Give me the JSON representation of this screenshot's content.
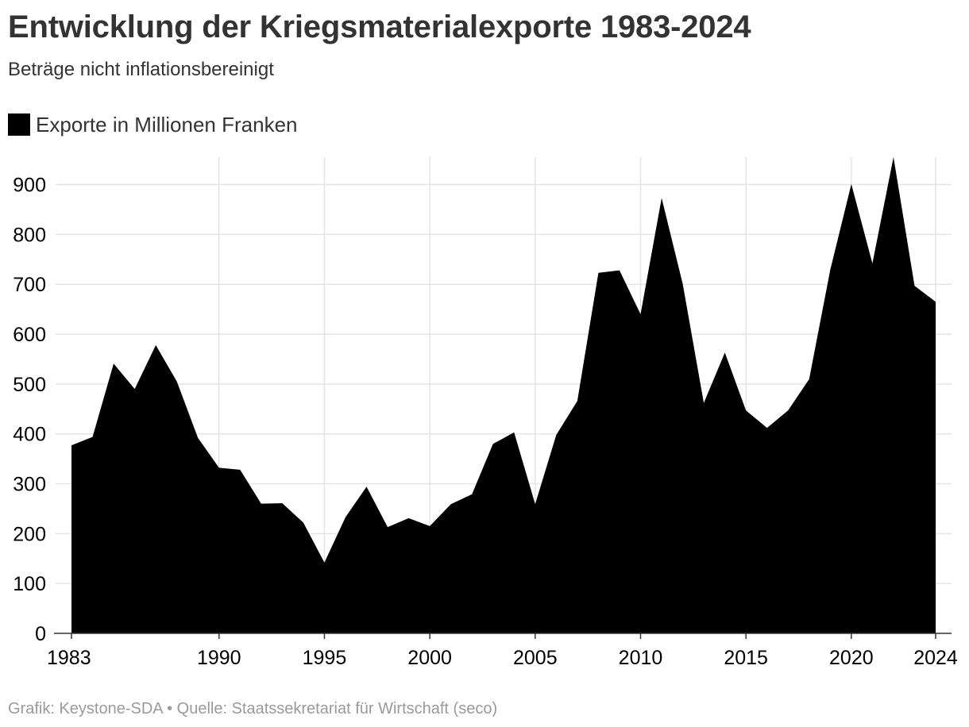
{
  "header": {
    "title": "Entwicklung der Kriegsmaterialexporte 1983-2024",
    "subtitle": "Beträge nicht inflationsbereinigt"
  },
  "legend": {
    "label": "Exporte in Millionen Franken",
    "color": "#000000"
  },
  "footer": {
    "credit": "Grafik: Keystone-SDA • Quelle: Staatssekretariat für Wirtschaft (seco)"
  },
  "colors": {
    "series": "#000000",
    "grid": "#e4e4e4",
    "axis": "#333333",
    "text": "#333333",
    "footer": "#9a9a9a"
  },
  "chart_data": {
    "type": "area",
    "title": "Entwicklung der Kriegsmaterialexporte 1983-2024",
    "subtitle": "Beträge nicht inflationsbereinigt",
    "xlabel": "",
    "ylabel": "",
    "xlim": [
      1983,
      2024
    ],
    "ylim": [
      0,
      955
    ],
    "grid": true,
    "legend_position": "top-left",
    "y_ticks": [
      0,
      100,
      200,
      300,
      400,
      500,
      600,
      700,
      800,
      900
    ],
    "x_ticks": [
      1983,
      1990,
      1995,
      2000,
      2005,
      2010,
      2015,
      2020,
      2024
    ],
    "x_gridlines": [
      1990,
      1995,
      2000,
      2005,
      2010,
      2015,
      2020,
      2024
    ],
    "series": [
      {
        "name": "Exporte in Millionen Franken",
        "x": [
          1983,
          1984,
          1985,
          1986,
          1987,
          1988,
          1989,
          1990,
          1991,
          1992,
          1993,
          1994,
          1995,
          1996,
          1997,
          1998,
          1999,
          2000,
          2001,
          2002,
          2003,
          2004,
          2005,
          2006,
          2007,
          2008,
          2009,
          2010,
          2011,
          2012,
          2013,
          2014,
          2015,
          2016,
          2017,
          2018,
          2019,
          2020,
          2021,
          2022,
          2023,
          2024
        ],
        "values": [
          377,
          394,
          541,
          490,
          578,
          505,
          392,
          332,
          328,
          260,
          261,
          222,
          142,
          233,
          294,
          213,
          231,
          215,
          259,
          279,
          380,
          403,
          259,
          398,
          466,
          723,
          728,
          640,
          873,
          701,
          462,
          563,
          447,
          412,
          447,
          510,
          729,
          901,
          742,
          955,
          697,
          665
        ]
      }
    ]
  }
}
